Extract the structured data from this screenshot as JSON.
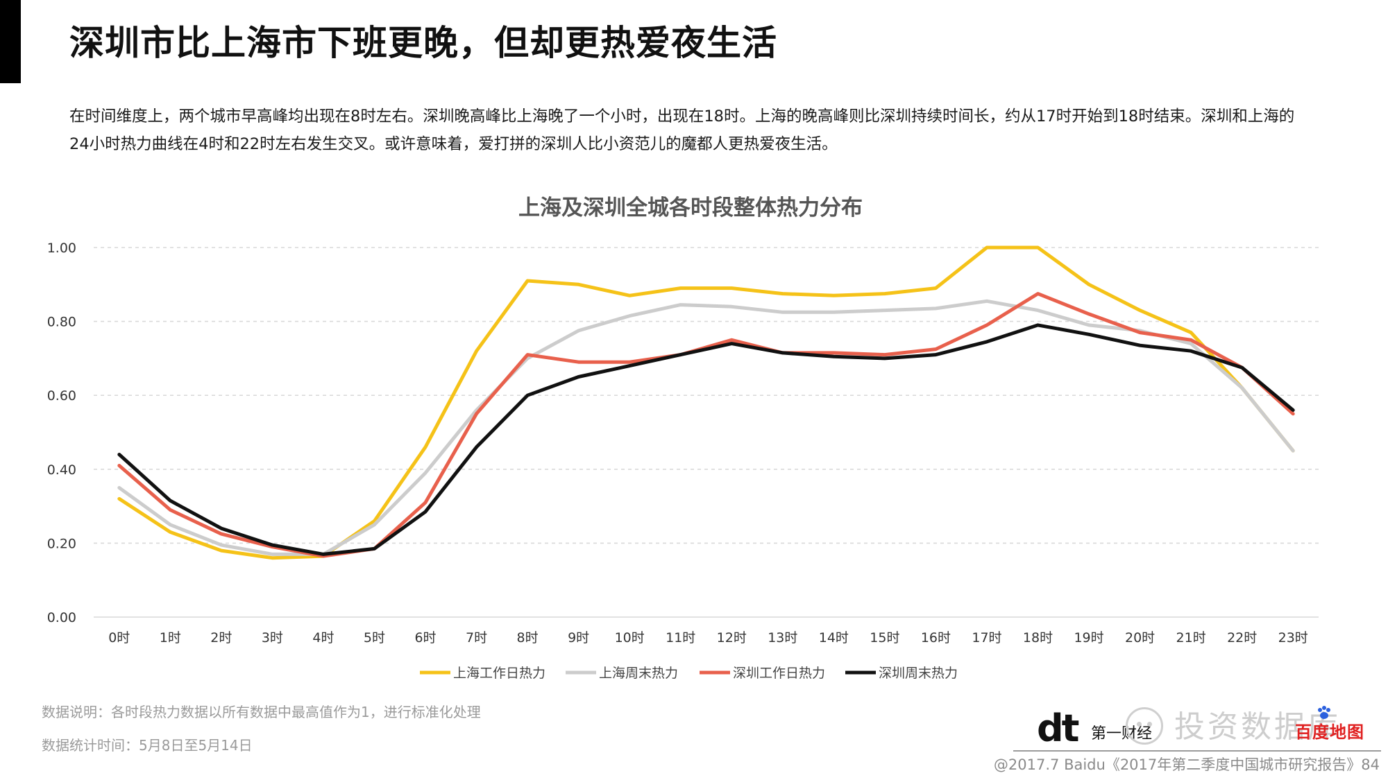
{
  "page": {
    "title": "深圳市比上海市下班更晚，但却更热爱夜生活",
    "intro_line1": "在时间维度上，两个城市早高峰均出现在8时左右。深圳晚高峰比上海晚了一个小时，出现在18时。上海的晚高峰则比深圳持续时间长，约从17时开始到18时结束。深圳和上海的",
    "intro_line2": "24小时热力曲线在4时和22时左右发生交叉。或许意味着，爱打拼的深圳人比小资范儿的魔都人更热爱夜生活。"
  },
  "chart_data": {
    "type": "line",
    "title": "上海及深圳全城各时段整体热力分布",
    "xlabel": "",
    "ylabel": "",
    "categories": [
      "0时",
      "1时",
      "2时",
      "3时",
      "4时",
      "5时",
      "6时",
      "7时",
      "8时",
      "9时",
      "10时",
      "11时",
      "12时",
      "13时",
      "14时",
      "15时",
      "16时",
      "17时",
      "18时",
      "19时",
      "20时",
      "21时",
      "22时",
      "23时"
    ],
    "ylim": [
      0,
      1
    ],
    "yticks": [
      0,
      0.2,
      0.4,
      0.6,
      0.8,
      1.0
    ],
    "ytick_labels": [
      "0.00",
      "0.20",
      "0.40",
      "0.60",
      "0.80",
      "1.00"
    ],
    "grid": true,
    "legend_position": "bottom",
    "series": [
      {
        "name": "上海工作日热力",
        "color": "#F5C218",
        "values": [
          0.32,
          0.23,
          0.18,
          0.16,
          0.165,
          0.26,
          0.46,
          0.72,
          0.91,
          0.9,
          0.87,
          0.89,
          0.89,
          0.875,
          0.87,
          0.875,
          0.89,
          1.0,
          1.0,
          0.9,
          0.83,
          0.77,
          0.62,
          0.45
        ]
      },
      {
        "name": "上海周末热力",
        "color": "#CCCCCC",
        "values": [
          0.35,
          0.25,
          0.195,
          0.17,
          0.17,
          0.25,
          0.39,
          0.56,
          0.7,
          0.775,
          0.815,
          0.845,
          0.84,
          0.825,
          0.825,
          0.83,
          0.835,
          0.855,
          0.83,
          0.79,
          0.775,
          0.74,
          0.62,
          0.45
        ]
      },
      {
        "name": "深圳工作日热力",
        "color": "#E8604C",
        "values": [
          0.41,
          0.29,
          0.225,
          0.19,
          0.165,
          0.185,
          0.31,
          0.55,
          0.71,
          0.69,
          0.69,
          0.71,
          0.75,
          0.715,
          0.715,
          0.71,
          0.725,
          0.79,
          0.875,
          0.82,
          0.77,
          0.75,
          0.675,
          0.55
        ]
      },
      {
        "name": "深圳周末热力",
        "color": "#111111",
        "values": [
          0.44,
          0.315,
          0.24,
          0.195,
          0.17,
          0.185,
          0.285,
          0.46,
          0.6,
          0.65,
          0.68,
          0.71,
          0.74,
          0.715,
          0.705,
          0.7,
          0.71,
          0.745,
          0.79,
          0.765,
          0.735,
          0.72,
          0.675,
          0.56
        ]
      }
    ]
  },
  "notes": {
    "data_desc": "数据说明：各时段热力数据以所有数据中最高值作为1，进行标准化处理",
    "data_period": "数据统计时间：5月8日至5月14日"
  },
  "branding": {
    "dt_logo": "dt",
    "dt_sub": "第一财经",
    "watermark": "投资数据库",
    "map_brand": "百度地图",
    "copyright": "@2017.7 Baidu《2017年第二季度中国城市研究报告》84"
  }
}
